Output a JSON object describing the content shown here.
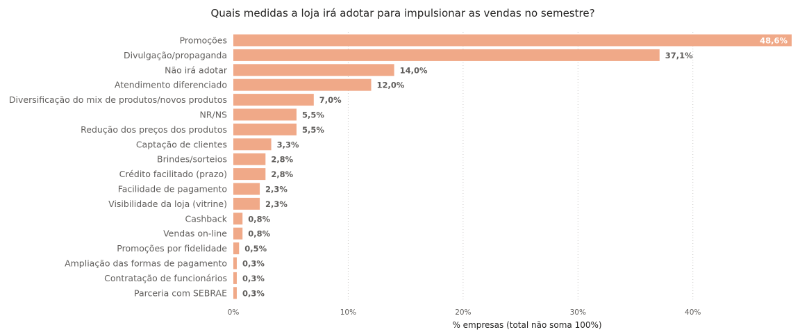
{
  "chart_data": {
    "type": "bar",
    "orientation": "horizontal",
    "title": "Quais medidas a loja irá adotar para impulsionar as vendas no semestre?",
    "xlabel": "% empresas (total não soma 100%)",
    "ylabel": "",
    "xlim": [
      0,
      48.6
    ],
    "xticks": [
      0,
      10,
      20,
      30,
      40
    ],
    "xtick_labels": [
      "0%",
      "10%",
      "20%",
      "30%",
      "40%"
    ],
    "grid": true,
    "bar_color": "#f0a988",
    "categories": [
      "Promoções",
      "Divulgação/propaganda",
      "Não irá adotar",
      "Atendimento diferenciado",
      "Diversificação do mix de produtos/novos produtos",
      "NR/NS",
      "Redução dos preços dos produtos",
      "Captação de clientes",
      "Brindes/sorteios",
      "Crédito facilitado (prazo)",
      "Facilidade de pagamento",
      "Visibilidade da loja (vitrine)",
      "Cashback",
      "Vendas on-line",
      "Promoções por fidelidade",
      "Ampliação das formas de pagamento",
      "Contratação de funcionários",
      "Parceria com SEBRAE"
    ],
    "values": [
      48.6,
      37.1,
      14.0,
      12.0,
      7.0,
      5.5,
      5.5,
      3.3,
      2.8,
      2.8,
      2.3,
      2.3,
      0.8,
      0.8,
      0.5,
      0.3,
      0.3,
      0.3
    ],
    "value_labels": [
      "48,6%",
      "37,1%",
      "14,0%",
      "12,0%",
      "7,0%",
      "5,5%",
      "5,5%",
      "3,3%",
      "2,8%",
      "2,8%",
      "2,3%",
      "2,3%",
      "0,8%",
      "0,8%",
      "0,5%",
      "0,3%",
      "0,3%",
      "0,3%"
    ]
  }
}
